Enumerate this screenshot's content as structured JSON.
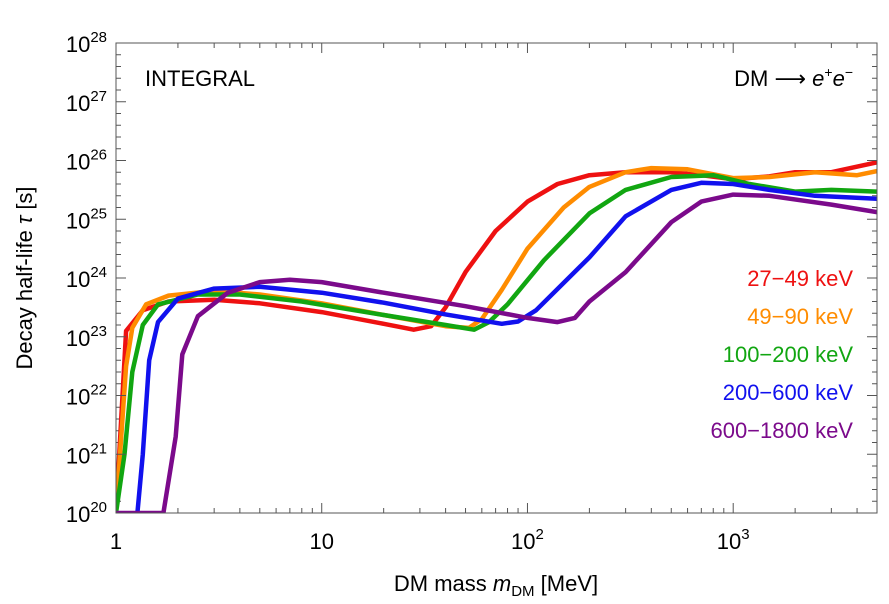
{
  "chart_data": {
    "type": "line",
    "xscale": "log",
    "yscale": "log",
    "xlim": [
      1,
      5000
    ],
    "ylim": [
      1e+20,
      1e+28
    ],
    "xlabel": {
      "pre": "DM mass ",
      "var": "m",
      "sub": "DM",
      "post": " [MeV]"
    },
    "ylabel": {
      "pre": "Decay half-life ",
      "var": "τ",
      "post": " [s]"
    },
    "x_ticks": [
      {
        "value": 1,
        "base": "1",
        "exp": ""
      },
      {
        "value": 10,
        "base": "10",
        "exp": ""
      },
      {
        "value": 100,
        "base": "10",
        "exp": "2"
      },
      {
        "value": 1000,
        "base": "10",
        "exp": "3"
      }
    ],
    "y_ticks": [
      {
        "value": 20,
        "base": "10",
        "exp": "20"
      },
      {
        "value": 21,
        "base": "10",
        "exp": "21"
      },
      {
        "value": 22,
        "base": "10",
        "exp": "22"
      },
      {
        "value": 23,
        "base": "10",
        "exp": "23"
      },
      {
        "value": 24,
        "base": "10",
        "exp": "24"
      },
      {
        "value": 25,
        "base": "10",
        "exp": "25"
      },
      {
        "value": 26,
        "base": "10",
        "exp": "26"
      },
      {
        "value": 27,
        "base": "10",
        "exp": "27"
      },
      {
        "value": 28,
        "base": "10",
        "exp": "28"
      }
    ],
    "annotations": {
      "left": "INTEGRAL",
      "right": {
        "pre": "DM ⟶ ",
        "e1": "e",
        "sup1": "+",
        "e2": "e",
        "sup2": "−"
      }
    },
    "legend_placement": "right",
    "series": [
      {
        "name": "27−49 keV",
        "color": "#ee1111",
        "points": [
          [
            1.0,
            20.0
          ],
          [
            1.12,
            23.1
          ],
          [
            1.35,
            23.45
          ],
          [
            1.8,
            23.6
          ],
          [
            3.0,
            23.63
          ],
          [
            5.0,
            23.57
          ],
          [
            10,
            23.42
          ],
          [
            20,
            23.22
          ],
          [
            28,
            23.12
          ],
          [
            34,
            23.18
          ],
          [
            40,
            23.5
          ],
          [
            50,
            24.1
          ],
          [
            70,
            24.8
          ],
          [
            100,
            25.3
          ],
          [
            140,
            25.6
          ],
          [
            200,
            25.75
          ],
          [
            300,
            25.8
          ],
          [
            500,
            25.8
          ],
          [
            700,
            25.75
          ],
          [
            1000,
            25.68
          ],
          [
            1500,
            25.73
          ],
          [
            2000,
            25.8
          ],
          [
            3000,
            25.8
          ],
          [
            5000,
            25.97
          ]
        ]
      },
      {
        "name": "49−90 keV",
        "color": "#ff8c00",
        "points": [
          [
            1.0,
            20.0
          ],
          [
            1.12,
            22.5
          ],
          [
            1.2,
            23.15
          ],
          [
            1.4,
            23.55
          ],
          [
            1.8,
            23.7
          ],
          [
            3.0,
            23.78
          ],
          [
            5.0,
            23.72
          ],
          [
            10,
            23.57
          ],
          [
            20,
            23.37
          ],
          [
            40,
            23.18
          ],
          [
            52,
            23.15
          ],
          [
            60,
            23.3
          ],
          [
            75,
            23.8
          ],
          [
            100,
            24.5
          ],
          [
            150,
            25.2
          ],
          [
            200,
            25.55
          ],
          [
            300,
            25.8
          ],
          [
            400,
            25.87
          ],
          [
            600,
            25.85
          ],
          [
            1000,
            25.7
          ],
          [
            1500,
            25.72
          ],
          [
            2500,
            25.8
          ],
          [
            4000,
            25.75
          ],
          [
            5000,
            25.82
          ]
        ]
      },
      {
        "name": "100−200 keV",
        "color": "#11a611",
        "points": [
          [
            1.0,
            20.0
          ],
          [
            1.1,
            21.0
          ],
          [
            1.2,
            22.4
          ],
          [
            1.35,
            23.2
          ],
          [
            1.6,
            23.55
          ],
          [
            2.5,
            23.72
          ],
          [
            4.0,
            23.72
          ],
          [
            8.0,
            23.6
          ],
          [
            20,
            23.37
          ],
          [
            40,
            23.2
          ],
          [
            55,
            23.12
          ],
          [
            65,
            23.25
          ],
          [
            80,
            23.55
          ],
          [
            120,
            24.3
          ],
          [
            200,
            25.1
          ],
          [
            300,
            25.5
          ],
          [
            500,
            25.72
          ],
          [
            800,
            25.75
          ],
          [
            1200,
            25.6
          ],
          [
            2000,
            25.47
          ],
          [
            3000,
            25.5
          ],
          [
            5000,
            25.47
          ]
        ]
      },
      {
        "name": "200−600 keV",
        "color": "#1111ee",
        "points": [
          [
            1.27,
            20.0
          ],
          [
            1.35,
            21.0
          ],
          [
            1.45,
            22.6
          ],
          [
            1.6,
            23.25
          ],
          [
            2.0,
            23.65
          ],
          [
            3.0,
            23.82
          ],
          [
            5.0,
            23.85
          ],
          [
            10,
            23.75
          ],
          [
            20,
            23.58
          ],
          [
            40,
            23.38
          ],
          [
            75,
            23.22
          ],
          [
            90,
            23.26
          ],
          [
            110,
            23.45
          ],
          [
            200,
            24.35
          ],
          [
            300,
            25.05
          ],
          [
            500,
            25.5
          ],
          [
            700,
            25.62
          ],
          [
            1000,
            25.6
          ],
          [
            1500,
            25.5
          ],
          [
            2500,
            25.4
          ],
          [
            5000,
            25.35
          ]
        ]
      },
      {
        "name": "600−1800 keV",
        "color": "#7b0a8b",
        "points": [
          [
            1.0,
            20.0
          ],
          [
            1.7,
            20.0
          ],
          [
            1.95,
            21.3
          ],
          [
            2.1,
            22.7
          ],
          [
            2.5,
            23.35
          ],
          [
            3.5,
            23.75
          ],
          [
            5.0,
            23.93
          ],
          [
            7.0,
            23.97
          ],
          [
            10,
            23.93
          ],
          [
            20,
            23.75
          ],
          [
            50,
            23.52
          ],
          [
            100,
            23.32
          ],
          [
            140,
            23.25
          ],
          [
            170,
            23.32
          ],
          [
            200,
            23.6
          ],
          [
            300,
            24.1
          ],
          [
            500,
            24.95
          ],
          [
            700,
            25.3
          ],
          [
            1000,
            25.42
          ],
          [
            1500,
            25.4
          ],
          [
            3000,
            25.25
          ],
          [
            5000,
            25.12
          ]
        ]
      }
    ]
  }
}
